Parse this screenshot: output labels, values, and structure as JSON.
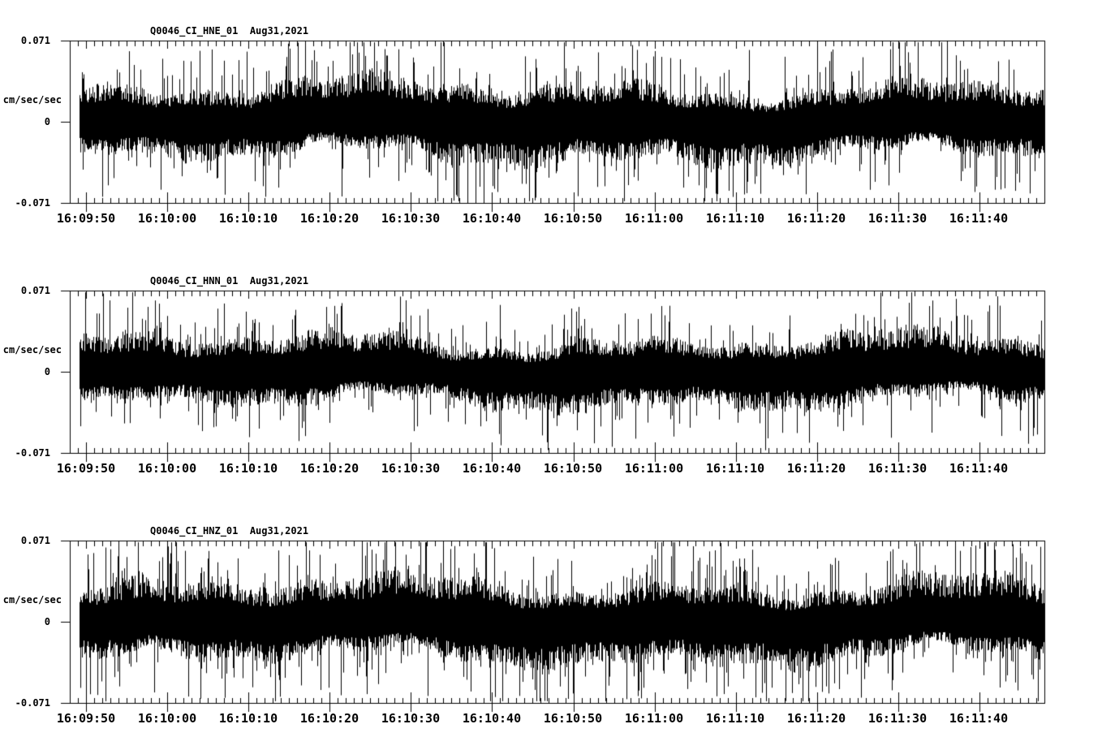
{
  "page": {
    "background": "#ffffff",
    "ink": "#000000"
  },
  "chart_data": {
    "type": "line",
    "subtype": "seismogram-minmax-trace",
    "grid": false,
    "legend": false,
    "panels": [
      {
        "title": "Q0046_CI_HNE_01  Aug31,2021",
        "noise": {
          "core_amp": 0.021,
          "burst_rate": 0.14,
          "spike_rate": 0.013,
          "max_spike": 0.066,
          "seed": 101
        }
      },
      {
        "title": "Q0046_CI_HNN_01  Aug31,2021",
        "noise": {
          "core_amp": 0.019,
          "burst_rate": 0.13,
          "spike_rate": 0.01,
          "max_spike": 0.06,
          "seed": 202
        }
      },
      {
        "title": "Q0046_CI_HNZ_01  Aug31,2021",
        "noise": {
          "core_amp": 0.022,
          "burst_rate": 0.16,
          "spike_rate": 0.016,
          "max_spike": 0.068,
          "seed": 303
        }
      }
    ],
    "y_unit": "cm/sec/sec",
    "y_tick_labels": [
      "0.071",
      "0",
      "-0.071"
    ],
    "ylim": [
      -0.071,
      0.071
    ],
    "x_tick_labels": [
      "16:09:50",
      "16:10:00",
      "16:10:10",
      "16:10:20",
      "16:10:30",
      "16:10:40",
      "16:10:50",
      "16:11:00",
      "16:11:10",
      "16:11:20",
      "16:11:30",
      "16:11:40"
    ],
    "x_axis": {
      "start": "16:09:48",
      "end": "16:11:48",
      "total_seconds": 120,
      "major_tick_seconds": 10,
      "minor_tick_seconds": 1,
      "data_start_offset_seconds": 1.2
    }
  }
}
